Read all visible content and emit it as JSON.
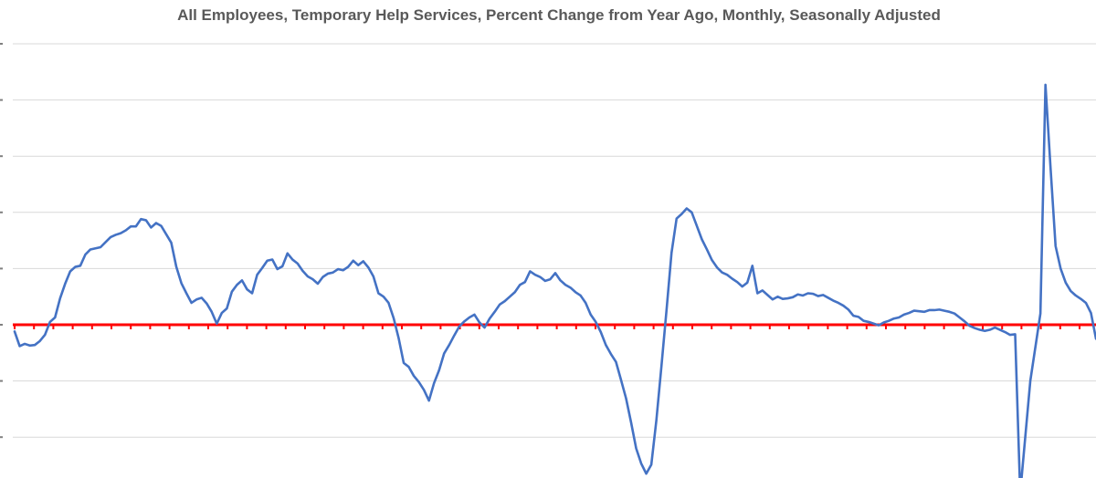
{
  "chart_data": {
    "type": "line",
    "title": "All Employees, Temporary Help Services, Percent Change from Year Ago, Monthly, Seasonally Adjusted",
    "xlabel": "",
    "ylabel": "",
    "ylim": [
      -28,
      50
    ],
    "grid": true,
    "legend": "none",
    "colors": {
      "series": "#4472C4",
      "zero_line": "#FF0000",
      "grid": "#D9D9D9",
      "title": "#595959"
    },
    "zero_line": {
      "value": 0,
      "style": "dashed-red"
    },
    "series": [
      {
        "values": [
          -1.2,
          -3.8,
          -3.4,
          -3.7,
          -3.6,
          -2.9,
          -1.8,
          0.5,
          1.3,
          4.7,
          7.3,
          9.5,
          10.3,
          10.5,
          12.5,
          13.4,
          13.6,
          13.8,
          14.7,
          15.6,
          16,
          16.3,
          16.8,
          17.5,
          17.5,
          18.8,
          18.6,
          17.3,
          18.1,
          17.6,
          16.1,
          14.6,
          10.3,
          7.4,
          5.6,
          3.9,
          4.5,
          4.8,
          3.8,
          2.3,
          0.2,
          2.1,
          2.9,
          5.9,
          7.1,
          7.9,
          6.3,
          5.6,
          8.9,
          10.1,
          11.4,
          11.6,
          9.9,
          10.4,
          12.7,
          11.6,
          10.9,
          9.6,
          8.6,
          8.1,
          7.3,
          8.5,
          9.1,
          9.3,
          9.9,
          9.7,
          10.3,
          11.4,
          10.6,
          11.3,
          10.2,
          8.6,
          5.6,
          5.0,
          3.9,
          1.2,
          -2.4,
          -6.8,
          -7.5,
          -9.1,
          -10.2,
          -11.6,
          -13.5,
          -10.4,
          -8.1,
          -5.1,
          -3.6,
          -1.9,
          -0.3,
          0.6,
          1.3,
          1.8,
          0.4,
          -0.5,
          1.1,
          2.3,
          3.6,
          4.2,
          5.0,
          5.8,
          7.1,
          7.6,
          9.5,
          8.9,
          8.5,
          7.8,
          8.1,
          9.2,
          7.9,
          7.1,
          6.6,
          5.8,
          5.2,
          3.9,
          1.8,
          0.5,
          -1.3,
          -3.6,
          -5.2,
          -6.6,
          -9.8,
          -13.1,
          -17.4,
          -22.0,
          -24.7,
          -26.5,
          -24.9,
          -17.0,
          -7.4,
          2.5,
          12.8,
          18.9,
          19.7,
          20.7,
          20.0,
          17.6,
          15.2,
          13.4,
          11.5,
          10.2,
          9.3,
          8.9,
          8.2,
          7.6,
          6.8,
          7.5,
          10.5,
          5.6,
          6.1,
          5.3,
          4.5,
          5.0,
          4.6,
          4.7,
          4.9,
          5.4,
          5.2,
          5.6,
          5.5,
          5.1,
          5.3,
          4.8,
          4.3,
          3.9,
          3.4,
          2.7,
          1.6,
          1.4,
          0.7,
          0.5,
          0.2,
          -0.1,
          0.4,
          0.7,
          1.1,
          1.3,
          1.8,
          2.1,
          2.5,
          2.4,
          2.3,
          2.6,
          2.6,
          2.7,
          2.5,
          2.3,
          2.0,
          1.3,
          0.6,
          -0.2,
          -0.6,
          -0.9,
          -1.1,
          -0.9,
          -0.5,
          -0.9,
          -1.3,
          -1.8,
          -1.7,
          -30.0,
          -20.0,
          -10.0,
          -4.0,
          2.0,
          42.7,
          28.0,
          14.0,
          10.0,
          7.5,
          6.0,
          5.2,
          4.6,
          3.9,
          2.1,
          -2.5
        ]
      }
    ]
  }
}
